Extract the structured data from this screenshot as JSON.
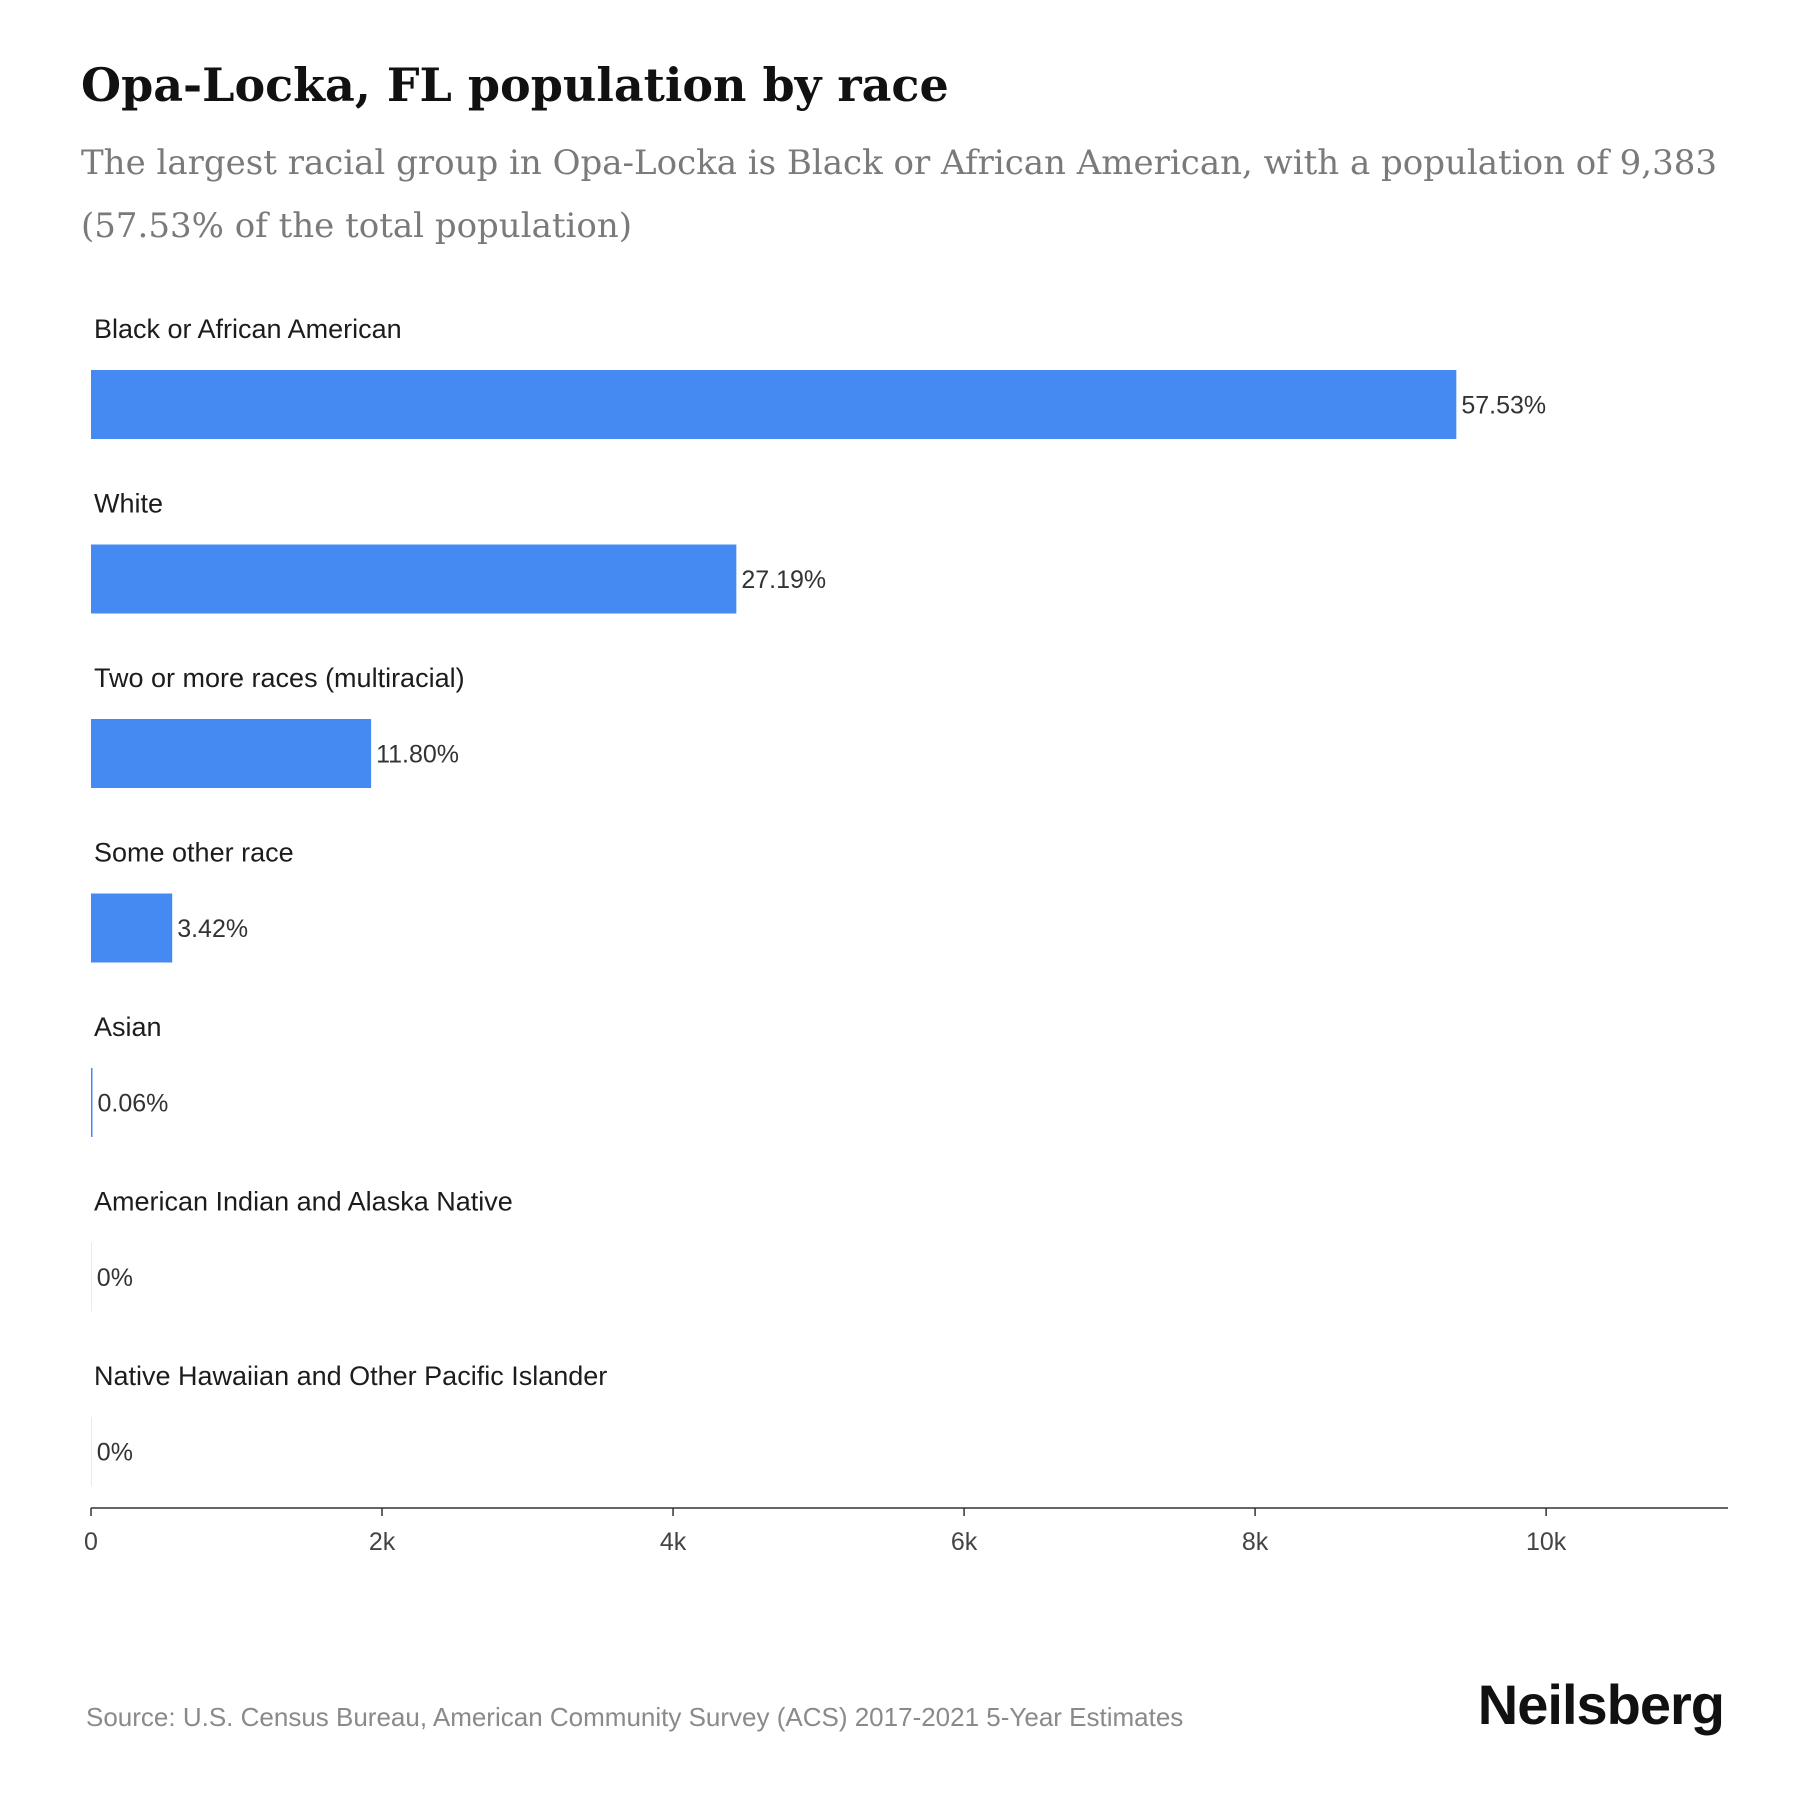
{
  "header": {
    "title": "Opa-Locka, FL population by race",
    "subtitle": "The largest racial group in Opa-Locka is Black or African American, with a population of 9,383 (57.53% of the total population)"
  },
  "chart_data": {
    "type": "bar",
    "orientation": "horizontal",
    "title": "Opa-Locka, FL population by race",
    "categories": [
      "Black or African American",
      "White",
      "Two or more races (multiracial)",
      "Some other race",
      "Asian",
      "American Indian and Alaska Native",
      "Native Hawaiian and Other Pacific Islander"
    ],
    "values": [
      9383,
      4435,
      1925,
      558,
      10,
      0,
      0
    ],
    "value_labels": [
      "57.53%",
      "27.19%",
      "11.80%",
      "3.42%",
      "0.06%",
      "0%",
      "0%"
    ],
    "xlim": [
      0,
      11250
    ],
    "xticks": [
      0,
      2000,
      4000,
      6000,
      8000,
      10000
    ],
    "xtick_labels": [
      "0",
      "2k",
      "4k",
      "6k",
      "8k",
      "10k"
    ],
    "bar_color": "#4589f2",
    "grid": false,
    "legend": "none"
  },
  "footer": {
    "source": "Source: U.S. Census Bureau, American Community Survey (ACS) 2017-2021 5-Year Estimates",
    "brand": "Neilsberg"
  }
}
